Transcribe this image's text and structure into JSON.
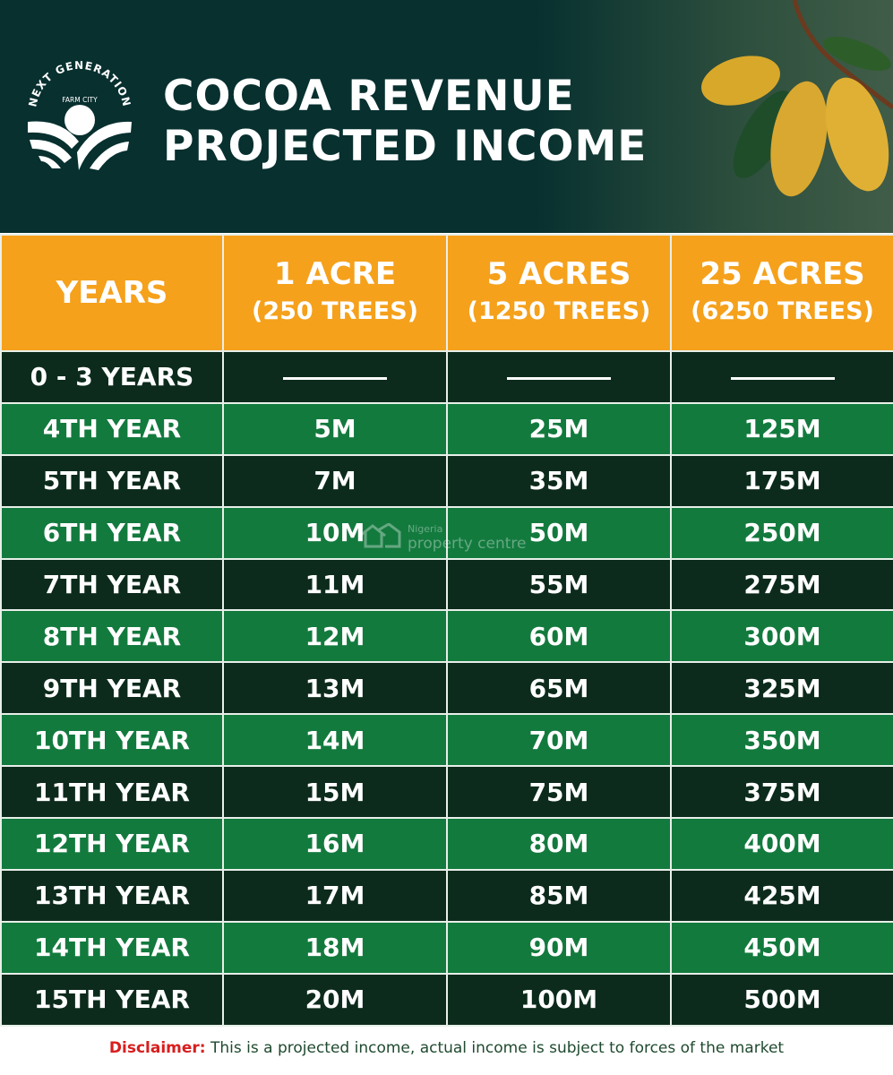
{
  "header": {
    "logo": {
      "arc_text": "NEXT GENERATION",
      "sub_text": "FARM CITY"
    },
    "title_line1": "COCOA REVENUE",
    "title_line2": "PROJECTED INCOME"
  },
  "table": {
    "columns": [
      {
        "label": "YEARS",
        "sub": ""
      },
      {
        "label": "1 ACRE",
        "sub": "(250 TREES)"
      },
      {
        "label": "5 ACRES",
        "sub": "(1250 TREES)"
      },
      {
        "label": "25 ACRES",
        "sub": "(6250 TREES)"
      }
    ],
    "rows": [
      [
        "0 - 3 YEARS",
        "",
        "",
        ""
      ],
      [
        "4TH YEAR",
        "5M",
        "25M",
        "125M"
      ],
      [
        "5TH YEAR",
        "7M",
        "35M",
        "175M"
      ],
      [
        "6TH YEAR",
        "10M",
        "50M",
        "250M"
      ],
      [
        "7TH YEAR",
        "11M",
        "55M",
        "275M"
      ],
      [
        "8TH YEAR",
        "12M",
        "60M",
        "300M"
      ],
      [
        "9TH YEAR",
        "13M",
        "65M",
        "325M"
      ],
      [
        "10TH YEAR",
        "14M",
        "70M",
        "350M"
      ],
      [
        "11TH YEAR",
        "15M",
        "75M",
        "375M"
      ],
      [
        "12TH YEAR",
        "16M",
        "80M",
        "400M"
      ],
      [
        "13TH YEAR",
        "17M",
        "85M",
        "425M"
      ],
      [
        "14TH YEAR",
        "18M",
        "90M",
        "450M"
      ],
      [
        "15TH YEAR",
        "20M",
        "100M",
        "500M"
      ]
    ]
  },
  "watermark": {
    "line1": "Nigeria",
    "line2": "property centre"
  },
  "disclaimer": {
    "label": "Disclaimer:",
    "text": " This is a projected income, actual income is subject to forces of the market"
  },
  "colors": {
    "header_bg": "#07302f",
    "header_row": "#f5a11c",
    "dark_row": "#0c2b1c",
    "green_row": "#137a3e",
    "disclaimer_label": "#d81e1e"
  }
}
